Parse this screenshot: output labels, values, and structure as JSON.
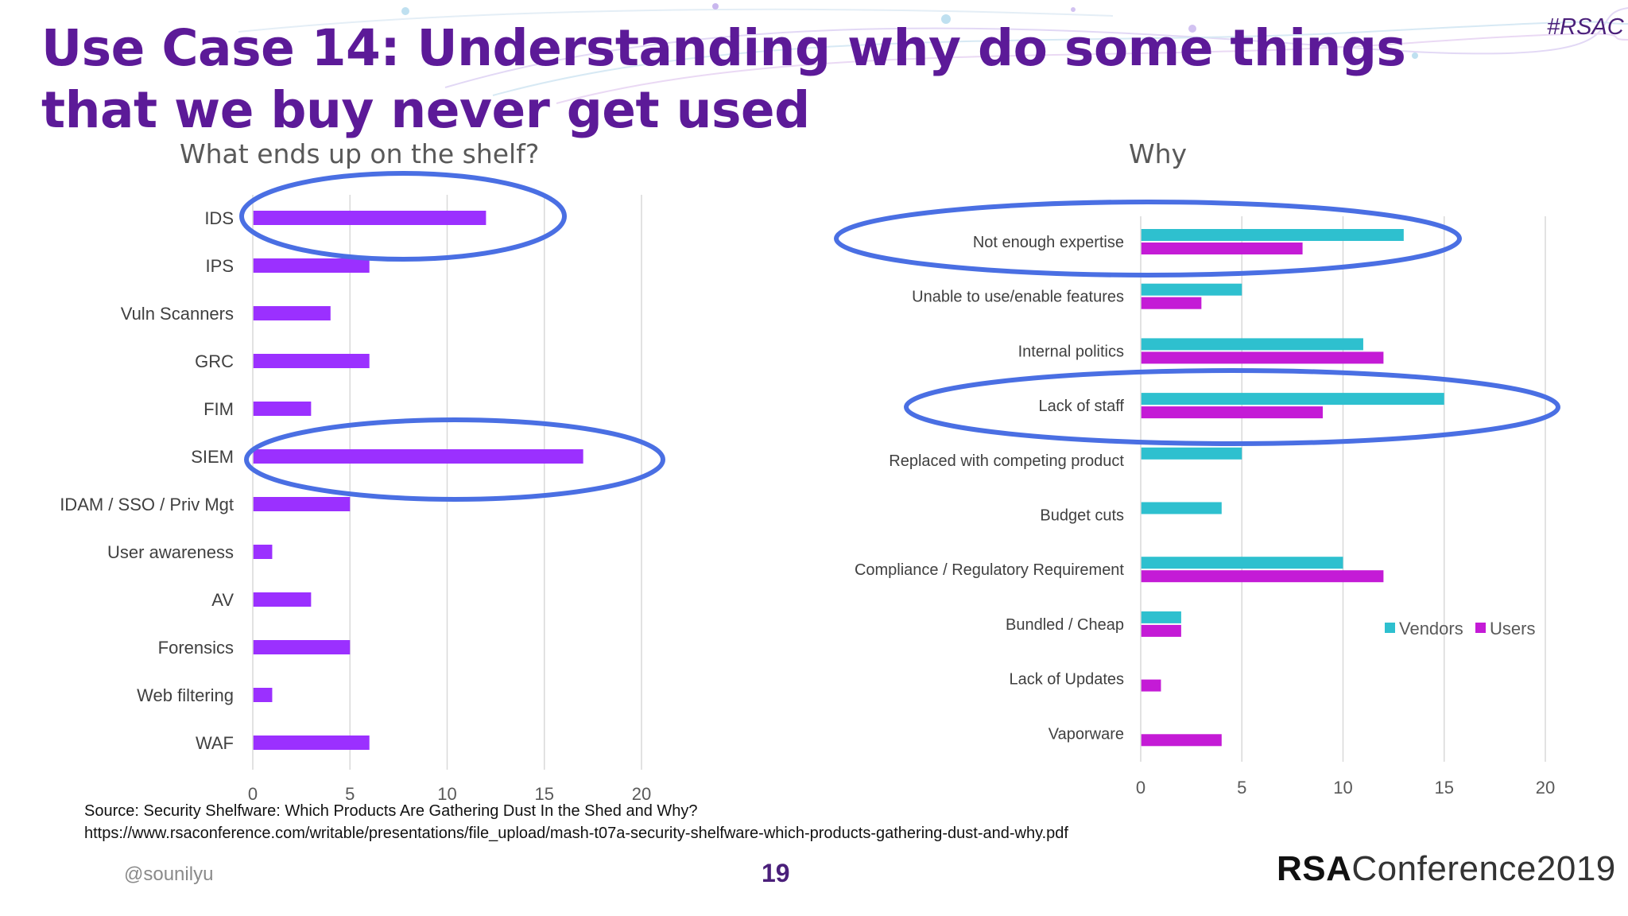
{
  "slide": {
    "title": "Use Case 14: Understanding why do some things that we buy never get used",
    "hashtag": "#RSAC",
    "source_line1": "Source: Security Shelfware: Which Products Are Gathering Dust In the Shed and Why?",
    "source_line2": "https://www.rsaconference.com/writable/presentations/file_upload/mash-t07a-security-shelfware-which-products-gathering-dust-and-why.pdf",
    "handle": "@sounilyu",
    "page_number": "19",
    "logo_bold": "RSA",
    "logo_rest": "Conference2019"
  },
  "colors": {
    "title": "#5c1a98",
    "bar_single": "#9b30ff",
    "vendors": "#2ec0cf",
    "users": "#c41bd6",
    "highlight_ellipse": "#4a6fe3",
    "grid": "#d9d9d9"
  },
  "chart_data": [
    {
      "type": "bar",
      "orientation": "horizontal",
      "title": "What ends up on the shelf?",
      "categories": [
        "IDS",
        "IPS",
        "Vuln Scanners",
        "GRC",
        "FIM",
        "SIEM",
        "IDAM / SSO / Priv Mgt",
        "User awareness",
        "AV",
        "Forensics",
        "Web filtering",
        "WAF"
      ],
      "values": [
        12,
        6,
        4,
        6,
        3,
        17,
        5,
        1,
        3,
        5,
        1,
        6
      ],
      "xlim": [
        0,
        20
      ],
      "xticks": [
        0,
        5,
        10,
        15,
        20
      ],
      "grid": true,
      "highlighted": [
        "IDS",
        "SIEM"
      ]
    },
    {
      "type": "bar",
      "orientation": "horizontal",
      "title": "Why",
      "categories": [
        "Not enough expertise",
        "Unable to use/enable features",
        "Internal politics",
        "Lack of staff",
        "Replaced with competing product",
        "Budget cuts",
        "Compliance / Regulatory Requirement",
        "Bundled / Cheap",
        "Lack of Updates",
        "Vaporware"
      ],
      "series": [
        {
          "name": "Vendors",
          "values": [
            13,
            5,
            11,
            15,
            5,
            4,
            10,
            2,
            0,
            0
          ]
        },
        {
          "name": "Users",
          "values": [
            8,
            3,
            12,
            9,
            0,
            0,
            12,
            2,
            1,
            4
          ]
        }
      ],
      "xlim": [
        0,
        20
      ],
      "xticks": [
        0,
        5,
        10,
        15,
        20
      ],
      "grid": true,
      "legend": "right",
      "highlighted": [
        "Not enough expertise",
        "Lack of staff"
      ]
    }
  ]
}
